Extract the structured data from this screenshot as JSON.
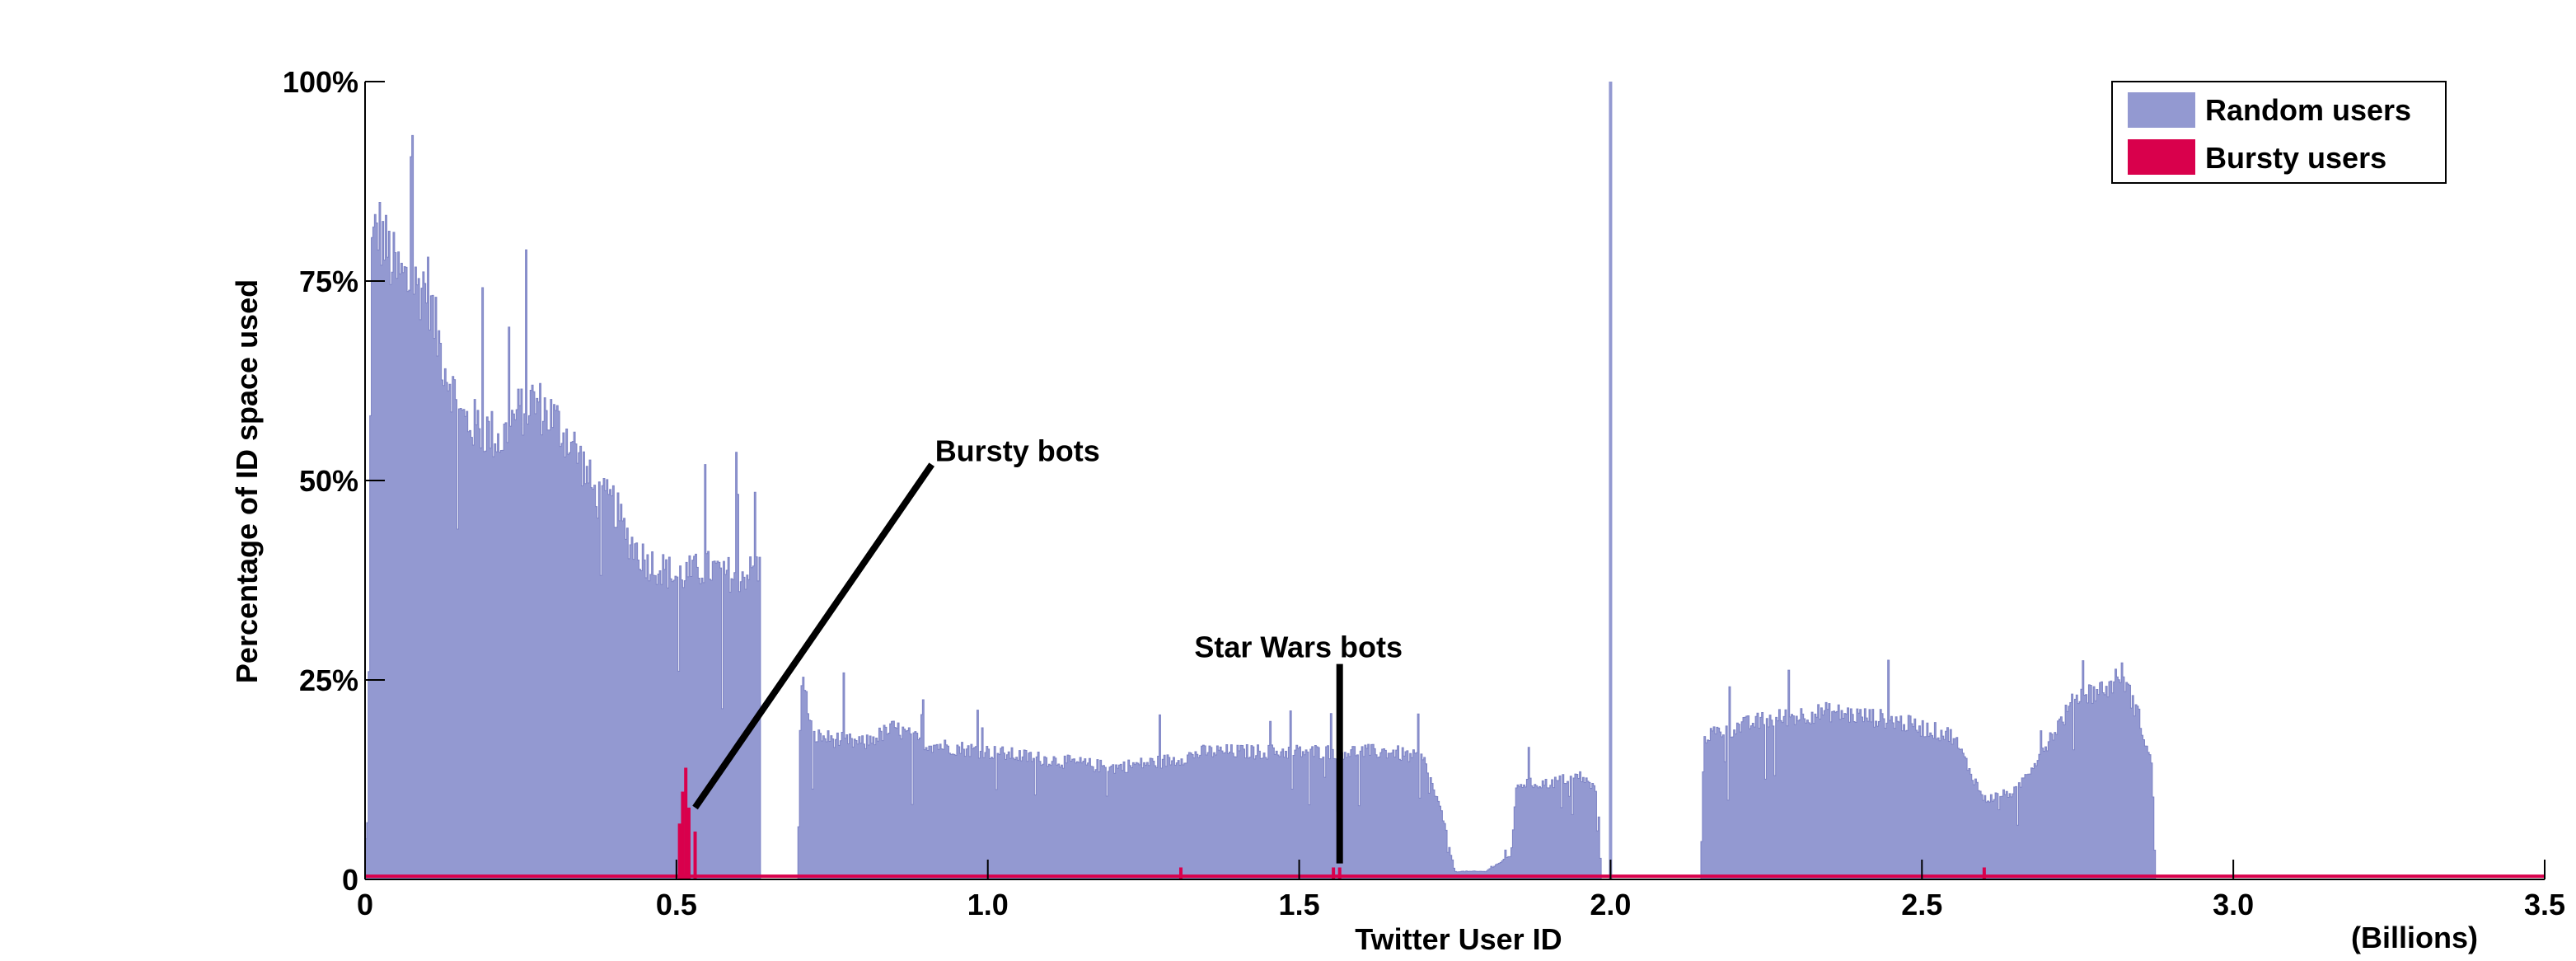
{
  "chart_data": {
    "type": "bar",
    "title": "",
    "xlabel": "Twitter User ID",
    "x_units_label": "(Billions)",
    "ylabel": "Percentage of ID space used",
    "xlim": [
      0,
      3.5
    ],
    "ylim": [
      0,
      100
    ],
    "x_ticks": [
      {
        "value": 0,
        "label": "0"
      },
      {
        "value": 0.5,
        "label": "0.5"
      },
      {
        "value": 1.0,
        "label": "1.0"
      },
      {
        "value": 1.5,
        "label": "1.5"
      },
      {
        "value": 2.0,
        "label": "2.0"
      },
      {
        "value": 2.5,
        "label": "2.5"
      },
      {
        "value": 3.0,
        "label": "3.0"
      },
      {
        "value": 3.5,
        "label": "3.5"
      }
    ],
    "y_ticks": [
      {
        "value": 0,
        "label": "0"
      },
      {
        "value": 25,
        "label": "25%"
      },
      {
        "value": 50,
        "label": "50%"
      },
      {
        "value": 75,
        "label": "75%"
      },
      {
        "value": 100,
        "label": "100%"
      }
    ],
    "grid": false,
    "legend_position": "top-right",
    "colors": {
      "random": "#9399d1",
      "bursty": "#d9004c"
    },
    "series": [
      {
        "name": "Random users",
        "color": "#9399d1",
        "profile": [
          [
            0.0,
            4
          ],
          [
            0.005,
            8
          ],
          [
            0.01,
            78
          ],
          [
            0.02,
            82
          ],
          [
            0.03,
            80
          ],
          [
            0.05,
            76
          ],
          [
            0.08,
            74
          ],
          [
            0.1,
            75
          ],
          [
            0.11,
            70
          ],
          [
            0.13,
            64
          ],
          [
            0.14,
            62
          ],
          [
            0.15,
            58
          ],
          [
            0.2,
            56
          ],
          [
            0.22,
            55
          ],
          [
            0.24,
            58
          ],
          [
            0.27,
            60
          ],
          [
            0.3,
            58
          ],
          [
            0.33,
            55
          ],
          [
            0.35,
            52
          ],
          [
            0.37,
            48
          ],
          [
            0.4,
            47
          ],
          [
            0.42,
            43
          ],
          [
            0.45,
            40
          ],
          [
            0.5,
            38
          ],
          [
            0.55,
            39
          ],
          [
            0.6,
            38
          ],
          [
            0.635,
            39
          ],
          [
            0.636,
            0
          ],
          [
            0.695,
            0
          ],
          [
            0.7,
            26
          ],
          [
            0.72,
            18
          ],
          [
            0.8,
            17
          ],
          [
            0.85,
            19
          ],
          [
            0.9,
            17
          ],
          [
            1.0,
            16
          ],
          [
            1.1,
            15
          ],
          [
            1.2,
            14
          ],
          [
            1.3,
            15
          ],
          [
            1.35,
            16
          ],
          [
            1.45,
            16
          ],
          [
            1.55,
            16
          ],
          [
            1.65,
            16
          ],
          [
            1.7,
            15
          ],
          [
            1.73,
            8
          ],
          [
            1.75,
            1
          ],
          [
            1.8,
            1
          ],
          [
            1.82,
            2
          ],
          [
            1.84,
            3
          ],
          [
            1.85,
            12
          ],
          [
            1.9,
            12
          ],
          [
            1.95,
            13
          ],
          [
            1.98,
            11
          ],
          [
            1.985,
            0
          ],
          [
            2.145,
            0
          ],
          [
            2.15,
            18
          ],
          [
            2.25,
            20
          ],
          [
            2.35,
            21
          ],
          [
            2.45,
            20
          ],
          [
            2.55,
            18
          ],
          [
            2.6,
            10
          ],
          [
            2.65,
            11
          ],
          [
            2.7,
            17
          ],
          [
            2.75,
            23
          ],
          [
            2.8,
            24
          ],
          [
            2.82,
            26
          ],
          [
            2.85,
            20
          ],
          [
            2.87,
            14
          ],
          [
            2.875,
            0
          ],
          [
            3.5,
            0
          ]
        ],
        "spike": {
          "x": 2.0,
          "value": 100
        }
      },
      {
        "name": "Bursty users",
        "color": "#d9004c",
        "baseline": 0.5,
        "peaks": [
          {
            "x": 0.505,
            "value": 7
          },
          {
            "x": 0.51,
            "value": 11
          },
          {
            "x": 0.515,
            "value": 14
          },
          {
            "x": 0.52,
            "value": 9
          },
          {
            "x": 0.53,
            "value": 6
          },
          {
            "x": 1.31,
            "value": 1.5
          },
          {
            "x": 1.555,
            "value": 1.5
          },
          {
            "x": 1.565,
            "value": 1.5
          },
          {
            "x": 2.6,
            "value": 1.5
          }
        ]
      }
    ],
    "annotations": [
      {
        "text": "Bursty bots",
        "target_x": 0.53,
        "target_y": 9,
        "label_x": 0.91,
        "label_y": 52
      },
      {
        "text": "Star Wars bots",
        "target_x": 1.565,
        "target_y": 2,
        "label_x": 1.565,
        "label_y": 27
      }
    ]
  }
}
